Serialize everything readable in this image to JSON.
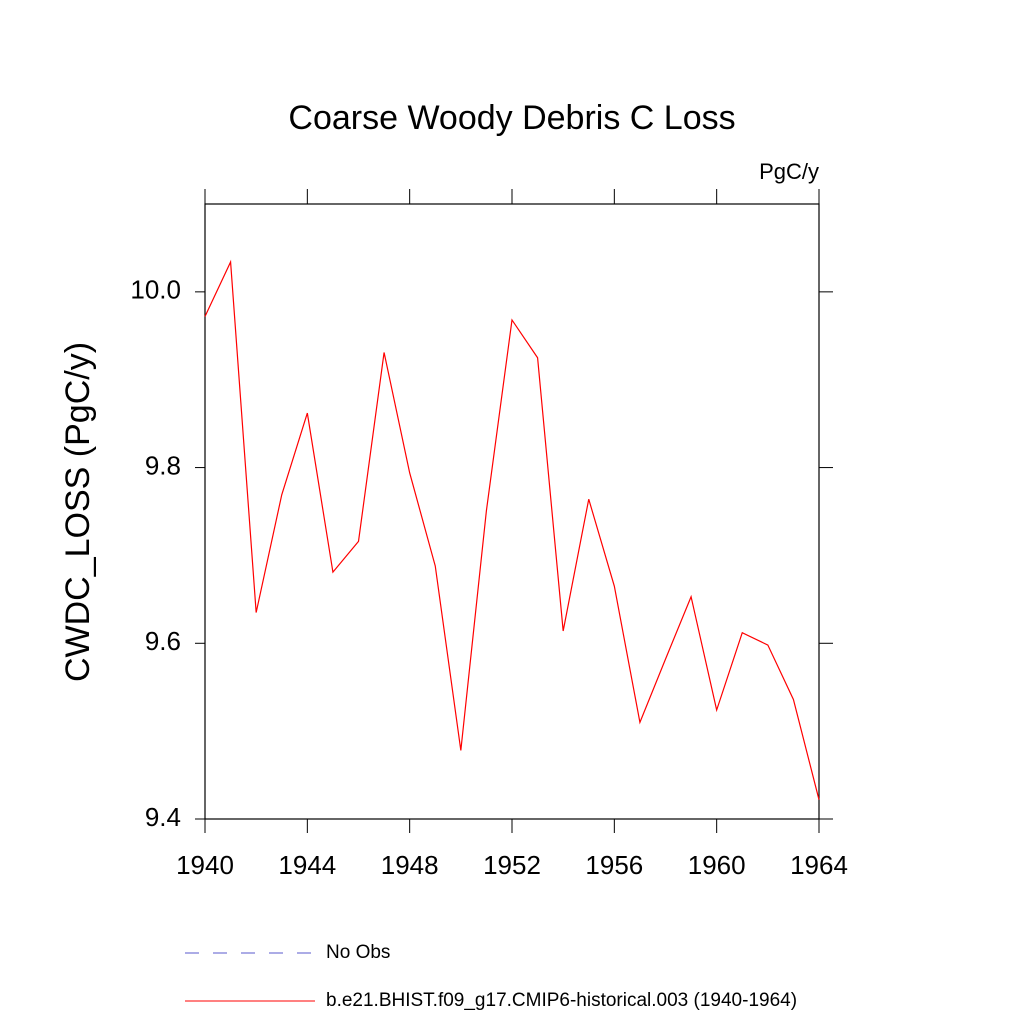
{
  "chart_data": {
    "type": "line",
    "title": "Coarse Woody Debris C Loss",
    "units": "PgC/y",
    "y_label": "CWDC_LOSS  (PgC/y)",
    "x": [
      1940,
      1941,
      1942,
      1943,
      1944,
      1945,
      1946,
      1947,
      1948,
      1949,
      1950,
      1951,
      1952,
      1953,
      1954,
      1955,
      1956,
      1957,
      1958,
      1959,
      1960,
      1961,
      1962,
      1963,
      1964
    ],
    "series": [
      {
        "name": "No Obs",
        "color": "#5a5acd",
        "dashed": true,
        "values": [
          null,
          null,
          null,
          null,
          null,
          null,
          null,
          null,
          null,
          null,
          null,
          null,
          null,
          null,
          null,
          null,
          null,
          null,
          null,
          null,
          null,
          null,
          null,
          null,
          null
        ]
      },
      {
        "name": "b.e21.BHIST.f09_g17.CMIP6-historical.003 (1940-1964)",
        "color": "#ff0000",
        "dashed": false,
        "values": [
          9.972,
          10.034,
          9.635,
          9.769,
          9.862,
          9.681,
          9.716,
          9.931,
          9.794,
          9.688,
          9.478,
          9.751,
          9.968,
          9.925,
          9.614,
          9.764,
          9.665,
          9.51,
          9.582,
          9.653,
          9.524,
          9.612,
          9.598,
          9.536,
          9.422
        ]
      }
    ],
    "xlim": [
      1940,
      1964
    ],
    "xticks": [
      1940,
      1944,
      1948,
      1952,
      1956,
      1960,
      1964
    ],
    "ylim": [
      9.4,
      10.1
    ],
    "yticks": [
      {
        "value": 9.4,
        "label": "9.4"
      },
      {
        "value": 9.6,
        "label": "9.6"
      },
      {
        "value": 9.8,
        "label": "9.8"
      },
      {
        "value": 10.0,
        "label": "10.0"
      }
    ]
  }
}
